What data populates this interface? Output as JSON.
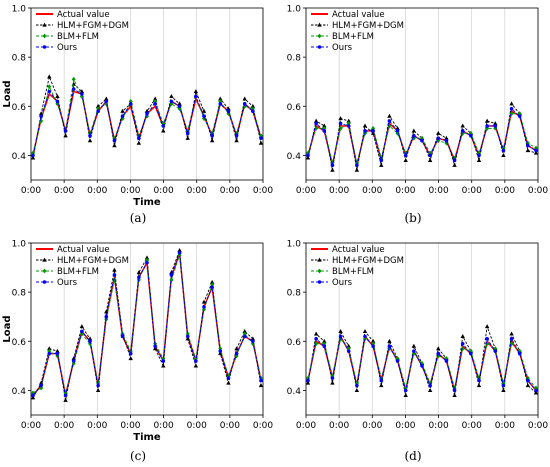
{
  "figure": {
    "captions": [
      "(a)",
      "(b)",
      "(c)",
      "(d)"
    ]
  },
  "chart_data": [
    {
      "type": "line",
      "panel": "(a)",
      "xlabel": "Time",
      "ylabel": "Load",
      "ylim": [
        0.3,
        1.0
      ],
      "yticks": [
        0.4,
        0.6,
        0.8,
        1.0
      ],
      "x_tick_labels": [
        "0:00",
        "0:00",
        "0:00",
        "0:00",
        "0:00",
        "0:00",
        "0:00",
        "0:00"
      ],
      "grid": "vertical-only",
      "legend_position": "top-left",
      "series": [
        {
          "name": "Actual value",
          "color": "#ff0000",
          "marker": "none",
          "values": [
            0.4,
            0.55,
            0.65,
            0.62,
            0.5,
            0.66,
            0.65,
            0.48,
            0.58,
            0.62,
            0.46,
            0.56,
            0.6,
            0.47,
            0.57,
            0.6,
            0.52,
            0.62,
            0.6,
            0.49,
            0.63,
            0.56,
            0.48,
            0.61,
            0.58,
            0.48,
            0.61,
            0.58,
            0.47
          ]
        },
        {
          "name": "HLM+FGM+DGM",
          "color": "#000000",
          "marker": "triangle",
          "values": [
            0.39,
            0.57,
            0.72,
            0.64,
            0.48,
            0.69,
            0.66,
            0.46,
            0.6,
            0.63,
            0.44,
            0.58,
            0.61,
            0.45,
            0.58,
            0.63,
            0.5,
            0.64,
            0.61,
            0.47,
            0.66,
            0.58,
            0.46,
            0.63,
            0.59,
            0.46,
            0.63,
            0.6,
            0.45
          ]
        },
        {
          "name": "BLM+FLM",
          "color": "#009900",
          "marker": "diamond",
          "values": [
            0.41,
            0.54,
            0.68,
            0.61,
            0.5,
            0.71,
            0.64,
            0.49,
            0.59,
            0.61,
            0.47,
            0.55,
            0.62,
            0.48,
            0.56,
            0.62,
            0.53,
            0.61,
            0.59,
            0.5,
            0.64,
            0.55,
            0.49,
            0.62,
            0.57,
            0.49,
            0.6,
            0.59,
            0.48
          ]
        },
        {
          "name": "Ours",
          "color": "#0000ff",
          "marker": "circle",
          "values": [
            0.4,
            0.56,
            0.66,
            0.62,
            0.5,
            0.67,
            0.65,
            0.48,
            0.58,
            0.62,
            0.46,
            0.56,
            0.61,
            0.47,
            0.57,
            0.61,
            0.52,
            0.62,
            0.6,
            0.49,
            0.64,
            0.56,
            0.48,
            0.61,
            0.58,
            0.48,
            0.61,
            0.58,
            0.47
          ]
        }
      ]
    },
    {
      "type": "line",
      "panel": "(b)",
      "xlabel": "",
      "ylabel": "",
      "ylim": [
        0.3,
        1.0
      ],
      "yticks": [
        0.4,
        0.6,
        0.8,
        1.0
      ],
      "x_tick_labels": [
        "0:00",
        "0:00",
        "0:00",
        "0:00",
        "0:00",
        "0:00",
        "0:00",
        "0:00"
      ],
      "grid": "vertical-only",
      "legend_position": "top-left",
      "series": [
        {
          "name": "Actual value",
          "color": "#ff0000",
          "marker": "none",
          "values": [
            0.4,
            0.52,
            0.5,
            0.36,
            0.52,
            0.52,
            0.36,
            0.5,
            0.5,
            0.38,
            0.53,
            0.5,
            0.4,
            0.48,
            0.46,
            0.4,
            0.47,
            0.46,
            0.38,
            0.5,
            0.48,
            0.4,
            0.52,
            0.52,
            0.42,
            0.58,
            0.56,
            0.44,
            0.42
          ]
        },
        {
          "name": "HLM+FGM+DGM",
          "color": "#000000",
          "marker": "triangle",
          "values": [
            0.39,
            0.54,
            0.52,
            0.34,
            0.55,
            0.54,
            0.34,
            0.52,
            0.49,
            0.36,
            0.56,
            0.51,
            0.38,
            0.5,
            0.47,
            0.38,
            0.49,
            0.47,
            0.36,
            0.52,
            0.49,
            0.38,
            0.54,
            0.53,
            0.4,
            0.61,
            0.57,
            0.42,
            0.41
          ]
        },
        {
          "name": "BLM+FLM",
          "color": "#009900",
          "marker": "diamond",
          "values": [
            0.41,
            0.51,
            0.51,
            0.37,
            0.51,
            0.53,
            0.37,
            0.49,
            0.51,
            0.39,
            0.52,
            0.49,
            0.41,
            0.47,
            0.47,
            0.41,
            0.46,
            0.45,
            0.39,
            0.49,
            0.49,
            0.41,
            0.51,
            0.51,
            0.43,
            0.57,
            0.57,
            0.45,
            0.43
          ]
        },
        {
          "name": "Ours",
          "color": "#0000ff",
          "marker": "circle",
          "values": [
            0.4,
            0.53,
            0.5,
            0.36,
            0.53,
            0.52,
            0.36,
            0.5,
            0.5,
            0.38,
            0.54,
            0.5,
            0.4,
            0.48,
            0.46,
            0.4,
            0.47,
            0.46,
            0.38,
            0.5,
            0.48,
            0.4,
            0.52,
            0.52,
            0.42,
            0.59,
            0.56,
            0.44,
            0.42
          ]
        }
      ]
    },
    {
      "type": "line",
      "panel": "(c)",
      "xlabel": "Time",
      "ylabel": "Load",
      "ylim": [
        0.3,
        1.0
      ],
      "yticks": [
        0.4,
        0.6,
        0.8,
        1.0
      ],
      "x_tick_labels": [
        "0:00",
        "0:00",
        "0:00",
        "0:00",
        "0:00",
        "0:00",
        "0:00",
        "0:00"
      ],
      "grid": "vertical-only",
      "legend_position": "top-left",
      "series": [
        {
          "name": "Actual value",
          "color": "#ff0000",
          "marker": "none",
          "values": [
            0.38,
            0.42,
            0.55,
            0.55,
            0.38,
            0.52,
            0.64,
            0.6,
            0.42,
            0.7,
            0.86,
            0.62,
            0.55,
            0.86,
            0.92,
            0.58,
            0.52,
            0.86,
            0.96,
            0.62,
            0.52,
            0.74,
            0.82,
            0.56,
            0.45,
            0.55,
            0.62,
            0.6,
            0.44
          ]
        },
        {
          "name": "HLM+FGM+DGM",
          "color": "#000000",
          "marker": "triangle",
          "values": [
            0.37,
            0.43,
            0.57,
            0.56,
            0.36,
            0.53,
            0.66,
            0.61,
            0.4,
            0.72,
            0.89,
            0.63,
            0.53,
            0.88,
            0.94,
            0.57,
            0.5,
            0.88,
            0.97,
            0.61,
            0.5,
            0.76,
            0.84,
            0.55,
            0.43,
            0.57,
            0.64,
            0.61,
            0.42
          ]
        },
        {
          "name": "BLM+FLM",
          "color": "#009900",
          "marker": "diamond",
          "values": [
            0.39,
            0.41,
            0.56,
            0.54,
            0.39,
            0.51,
            0.63,
            0.59,
            0.43,
            0.69,
            0.85,
            0.63,
            0.56,
            0.85,
            0.93,
            0.59,
            0.53,
            0.85,
            0.95,
            0.63,
            0.53,
            0.73,
            0.83,
            0.57,
            0.46,
            0.54,
            0.63,
            0.59,
            0.45
          ]
        },
        {
          "name": "Ours",
          "color": "#0000ff",
          "marker": "circle",
          "values": [
            0.38,
            0.42,
            0.55,
            0.55,
            0.38,
            0.52,
            0.64,
            0.6,
            0.42,
            0.7,
            0.87,
            0.62,
            0.55,
            0.86,
            0.92,
            0.58,
            0.52,
            0.87,
            0.96,
            0.62,
            0.52,
            0.74,
            0.82,
            0.56,
            0.45,
            0.55,
            0.62,
            0.6,
            0.44
          ]
        }
      ]
    },
    {
      "type": "line",
      "panel": "(d)",
      "xlabel": "",
      "ylabel": "",
      "ylim": [
        0.3,
        1.0
      ],
      "yticks": [
        0.4,
        0.6,
        0.8,
        1.0
      ],
      "x_tick_labels": [
        "0:00",
        "0:00",
        "0:00",
        "0:00",
        "0:00",
        "0:00",
        "0:00",
        "0:00"
      ],
      "grid": "vertical-only",
      "legend_position": "top-left",
      "series": [
        {
          "name": "Actual value",
          "color": "#ff0000",
          "marker": "none",
          "values": [
            0.44,
            0.6,
            0.58,
            0.45,
            0.62,
            0.56,
            0.42,
            0.62,
            0.58,
            0.44,
            0.58,
            0.52,
            0.4,
            0.56,
            0.5,
            0.42,
            0.55,
            0.52,
            0.4,
            0.58,
            0.55,
            0.44,
            0.6,
            0.56,
            0.42,
            0.6,
            0.55,
            0.44,
            0.4
          ]
        },
        {
          "name": "HLM+FGM+DGM",
          "color": "#000000",
          "marker": "triangle",
          "values": [
            0.43,
            0.63,
            0.6,
            0.43,
            0.64,
            0.58,
            0.4,
            0.64,
            0.6,
            0.42,
            0.6,
            0.53,
            0.38,
            0.58,
            0.51,
            0.4,
            0.57,
            0.53,
            0.38,
            0.62,
            0.56,
            0.42,
            0.66,
            0.57,
            0.4,
            0.63,
            0.56,
            0.42,
            0.39
          ]
        },
        {
          "name": "BLM+FLM",
          "color": "#009900",
          "marker": "diamond",
          "values": [
            0.45,
            0.59,
            0.59,
            0.46,
            0.61,
            0.57,
            0.43,
            0.61,
            0.59,
            0.45,
            0.57,
            0.53,
            0.41,
            0.55,
            0.51,
            0.43,
            0.54,
            0.53,
            0.41,
            0.57,
            0.56,
            0.45,
            0.59,
            0.57,
            0.43,
            0.59,
            0.56,
            0.45,
            0.41
          ]
        },
        {
          "name": "Ours",
          "color": "#0000ff",
          "marker": "circle",
          "values": [
            0.44,
            0.61,
            0.58,
            0.45,
            0.62,
            0.56,
            0.42,
            0.62,
            0.58,
            0.44,
            0.58,
            0.52,
            0.4,
            0.56,
            0.5,
            0.42,
            0.55,
            0.52,
            0.4,
            0.59,
            0.55,
            0.44,
            0.61,
            0.56,
            0.42,
            0.61,
            0.55,
            0.44,
            0.4
          ]
        }
      ]
    }
  ]
}
